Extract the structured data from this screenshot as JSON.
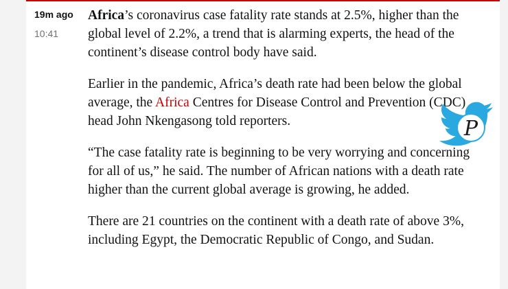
{
  "entry": {
    "time_ago": "19m ago",
    "timestamp": "10:41",
    "accent_color": "#c70000"
  },
  "paragraphs": {
    "p1": {
      "lead_bold": "Africa",
      "rest": "’s coronavirus case fatality rate stands at 2.5%, higher than the global level of 2.2%, a trend that is alarming experts, the head of the continent’s disease control body have said."
    },
    "p2": {
      "before_link": "Earlier in the pandemic, Africa’s death rate had been below the global average, the ",
      "link_text": "Africa",
      "after_link": " Centres for Disease Control and Prevention (CDC) head John Nkengasong told reporters."
    },
    "p3": "“The case fatality rate is beginning to be very worrying and concerning for all of us,” he said. The number of African nations with a death rate higher than the current global average is growing, he added.",
    "p4": "There are 21 countries on the continent with a death rate of above 3%, including Egypt, the Democratic Republic of Congo, and Sudan."
  },
  "overlay": {
    "icon": "twitter-bird-icon",
    "monogram": "P",
    "color": "#2aa8e0"
  }
}
